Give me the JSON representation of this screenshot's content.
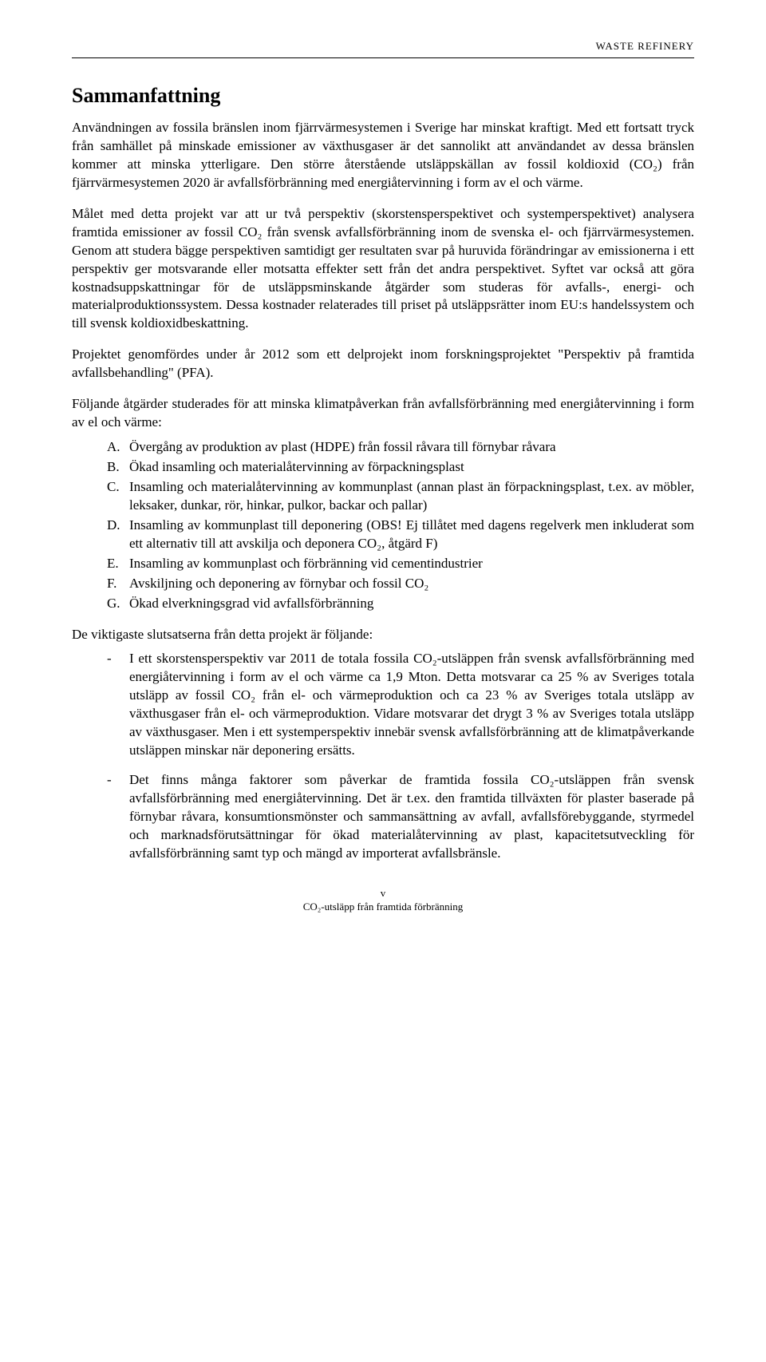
{
  "header": {
    "brand": "WASTE REFINERY"
  },
  "title": "Sammanfattning",
  "paragraphs": {
    "p1": "Användningen av fossila bränslen inom fjärrvärmesystemen i Sverige har minskat kraftigt. Med ett fortsatt tryck från samhället på minskade emissioner av växthusgaser är det sannolikt att användandet av dessa bränslen kommer att minska ytterligare. Den större återstående utsläppskällan av fossil koldioxid (CO₂) från fjärrvärmesystemen 2020 är avfallsförbränning med energiåtervinning i form av el och värme.",
    "p2": "Målet med detta projekt var att ur två perspektiv (skorstensperspektivet och systemperspektivet) analysera framtida emissioner av fossil CO₂ från svensk avfallsförbränning inom de svenska el- och fjärrvärmesystemen. Genom att studera bägge perspektiven samtidigt ger resultaten svar på huruvida förändringar av emissionerna i ett perspektiv ger motsvarande eller motsatta effekter sett från det andra perspektivet. Syftet var också att göra kostnadsuppskattningar för de utsläppsminskande åtgärder som studeras för avfalls-, energi- och materialproduktionssystem. Dessa kostnader relaterades till priset på utsläppsrätter inom EU:s handelssystem och till svensk koldioxidbeskattning.",
    "p3": "Projektet genomfördes under år 2012 som ett delprojekt inom forskningsprojektet \"Perspektiv på framtida avfallsbehandling\" (PFA).",
    "p4": "Följande åtgärder studerades för att minska klimatpåverkan från avfallsförbränning med energiåtervinning i form av el och värme:",
    "p5": "De viktigaste slutsatserna från detta projekt är följande:"
  },
  "measures": {
    "a": "Övergång av produktion av plast (HDPE) från fossil råvara till förnybar råvara",
    "b": "Ökad insamling och materialåtervinning av förpackningsplast",
    "c": "Insamling och materialåtervinning av kommunplast (annan plast än förpackningsplast, t.ex. av möbler, leksaker, dunkar, rör, hinkar, pulkor, backar och pallar)",
    "d": "Insamling av kommunplast till deponering (OBS! Ej tillåtet med dagens regelverk men inkluderat som ett alternativ till att avskilja och deponera CO₂, åtgärd F)",
    "e": "Insamling av kommunplast och förbränning vid cementindustrier",
    "f": "Avskiljning och deponering av förnybar och fossil CO₂",
    "g": "Ökad elverkningsgrad vid avfallsförbränning"
  },
  "conclusions": {
    "c1": "I ett skorstensperspektiv var 2011 de totala fossila CO₂-utsläppen från svensk avfallsförbränning med energiåtervinning i form av el och värme ca 1,9 Mton. Detta motsvarar ca 25 % av Sveriges totala utsläpp av fossil CO₂ från el- och värmeproduktion och ca 23 % av Sveriges totala utsläpp av växthusgaser från el- och värmeproduktion. Vidare motsvarar det drygt 3 % av Sveriges totala utsläpp av växthusgaser. Men i ett systemperspektiv innebär svensk avfallsförbränning att de klimatpåverkande utsläppen minskar när deponering ersätts.",
    "c2": "Det finns många faktorer som påverkar de framtida fossila CO₂-utsläppen från svensk avfallsförbränning med energiåtervinning. Det är t.ex. den framtida tillväxten för plaster baserade på förnybar råvara, konsumtionsmönster och sammansättning av avfall, avfallsförebyggande, styrmedel och marknadsförutsättningar för ökad materialåtervinning av plast, kapacitetsutveckling för avfallsförbränning samt typ och mängd av importerat avfallsbränsle."
  },
  "footer": {
    "page_num": "v",
    "caption": "CO₂-utsläpp från framtida förbränning"
  },
  "colors": {
    "text": "#000000",
    "background": "#ffffff",
    "rule": "#000000"
  },
  "typography": {
    "body_family": "Garamond / Georgia serif",
    "body_size_pt": 12,
    "title_size_pt": 18,
    "header_size_pt": 9,
    "footer_size_pt": 9
  }
}
